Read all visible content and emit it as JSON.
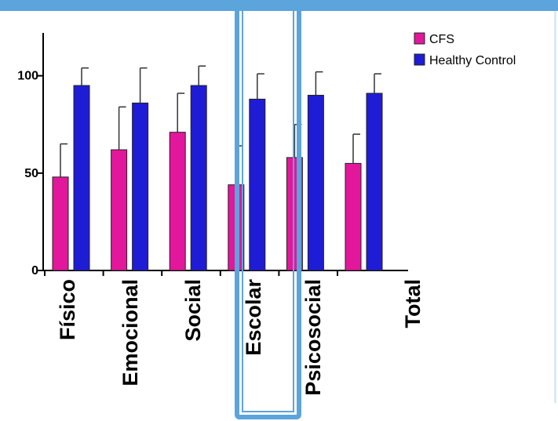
{
  "chart_data": {
    "type": "bar",
    "categories": [
      "Físico",
      "Emocional",
      "Social",
      "Escolar",
      "Psicosocial",
      "Total"
    ],
    "series": [
      {
        "name": "CFS",
        "color": "#e3179b",
        "values": [
          48,
          62,
          71,
          44,
          58,
          55
        ],
        "errors": [
          17,
          22,
          20,
          20,
          17,
          15
        ]
      },
      {
        "name": "Healthy Control",
        "color": "#1f1cd6",
        "values": [
          95,
          86,
          95,
          88,
          90,
          91
        ],
        "errors": [
          9,
          18,
          10,
          13,
          12,
          10
        ]
      }
    ],
    "yticks": [
      0,
      50,
      100
    ],
    "ylim": [
      0,
      122
    ],
    "xlabel": "",
    "ylabel": "",
    "legend_position": "top-right",
    "highlight_category": "Escolar",
    "highlight_color": "#5ca4dc"
  }
}
